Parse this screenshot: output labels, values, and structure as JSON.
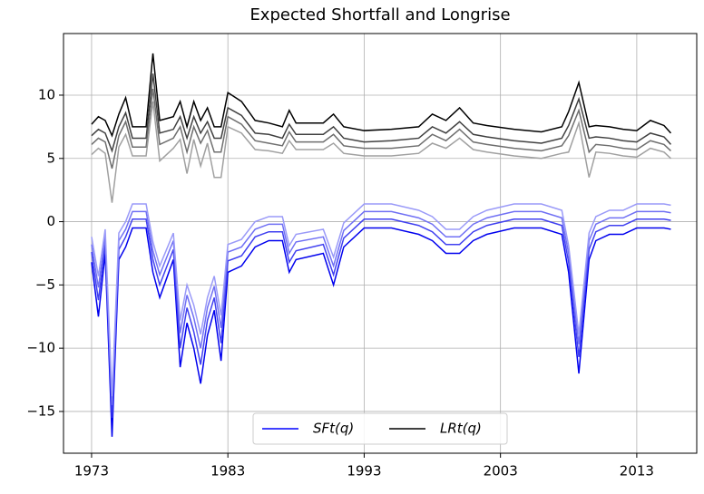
{
  "chart_data": {
    "type": "line",
    "title": "Expected Shortfall and Longrise",
    "x": [
      1973,
      1973.5,
      1974,
      1974.5,
      1975,
      1975.5,
      1976,
      1977,
      1977.5,
      1978,
      1979,
      1979.5,
      1980,
      1980.5,
      1981,
      1981.5,
      1982,
      1982.5,
      1983,
      1984,
      1985,
      1986,
      1987,
      1987.5,
      1988,
      1990,
      1990.75,
      1991.5,
      1993,
      1995,
      1997,
      1998,
      1999,
      2000,
      2001,
      2002,
      2004,
      2006,
      2007.5,
      2008,
      2008.75,
      2009.5,
      2010,
      2011,
      2012,
      2013,
      2014,
      2015,
      2015.5
    ],
    "series": [
      {
        "name": "SFt(q)",
        "color": "#0000ff",
        "lines": [
          {
            "color": "#0000ee",
            "values": [
              -3.2,
              -7.5,
              -2.5,
              -17,
              -3,
              -2,
              -0.5,
              -0.5,
              -4,
              -6,
              -3,
              -11.5,
              -8,
              -10,
              -12.8,
              -9,
              -7,
              -11,
              -4,
              -3.5,
              -2,
              -1.5,
              -1.5,
              -4,
              -3,
              -2.5,
              -5,
              -2,
              -0.5,
              -0.5,
              -1,
              -1.5,
              -2.5,
              -2.5,
              -1.5,
              -1,
              -0.5,
              -0.5,
              -1,
              -4,
              -12,
              -3,
              -1.5,
              -1,
              -1,
              -0.5,
              -0.5,
              -0.5,
              -0.6
            ]
          },
          {
            "color": "#4040f0",
            "values": [
              -2.4,
              -6.2,
              -1.8,
              -15.5,
              -2.2,
              -1.2,
              0.2,
              0.2,
              -3,
              -5,
              -2.2,
              -10,
              -6.8,
              -8.7,
              -11.3,
              -7.8,
              -6,
              -9.6,
              -3.1,
              -2.7,
              -1.2,
              -0.8,
              -0.8,
              -3.2,
              -2.3,
              -1.8,
              -4.2,
              -1.3,
              0.2,
              0.2,
              -0.3,
              -0.8,
              -1.8,
              -1.8,
              -0.8,
              -0.3,
              0.2,
              0.2,
              -0.3,
              -3.2,
              -10.7,
              -2.2,
              -0.8,
              -0.3,
              -0.3,
              0.2,
              0.2,
              0.2,
              0.1
            ]
          },
          {
            "color": "#7070f4",
            "values": [
              -1.8,
              -5.2,
              -1.2,
              -14.5,
              -1.5,
              -0.6,
              0.8,
              0.8,
              -2.3,
              -4.2,
              -1.5,
              -8.8,
              -5.8,
              -7.6,
              -10,
              -6.8,
              -5.1,
              -8.4,
              -2.4,
              -2,
              -0.6,
              -0.2,
              -0.2,
              -2.5,
              -1.6,
              -1.2,
              -3.5,
              -0.7,
              0.8,
              0.8,
              0.3,
              -0.2,
              -1.2,
              -1.2,
              -0.2,
              0.3,
              0.8,
              0.8,
              0.3,
              -2.5,
              -9.7,
              -1.5,
              -0.2,
              0.3,
              0.3,
              0.8,
              0.8,
              0.8,
              0.7
            ]
          },
          {
            "color": "#9a9af8",
            "values": [
              -1.2,
              -4.3,
              -0.6,
              -13.8,
              -0.9,
              0,
              1.4,
              1.4,
              -1.6,
              -3.5,
              -0.9,
              -7.8,
              -5,
              -6.6,
              -8.9,
              -6,
              -4.3,
              -7.4,
              -1.8,
              -1.4,
              0,
              0.4,
              0.4,
              -1.9,
              -1,
              -0.6,
              -2.8,
              -0.1,
              1.4,
              1.4,
              0.9,
              0.4,
              -0.6,
              -0.6,
              0.4,
              0.9,
              1.4,
              1.4,
              0.9,
              -1.9,
              -8.9,
              -0.9,
              0.4,
              0.9,
              0.9,
              1.4,
              1.4,
              1.4,
              1.3
            ]
          }
        ]
      },
      {
        "name": "LRt(q)",
        "color": "#000000",
        "lines": [
          {
            "color": "#000000",
            "values": [
              7.7,
              8.3,
              8,
              6.8,
              8.5,
              9.8,
              7.5,
              7.5,
              13.3,
              8,
              8.3,
              9.5,
              7.5,
              9.5,
              8,
              9,
              7.5,
              7.5,
              10.2,
              9.5,
              8,
              7.8,
              7.5,
              8.8,
              7.8,
              7.8,
              8.5,
              7.5,
              7.2,
              7.3,
              7.5,
              8.5,
              8,
              9,
              7.8,
              7.6,
              7.3,
              7.1,
              7.5,
              8.7,
              11,
              7.5,
              7.6,
              7.5,
              7.3,
              7.2,
              8,
              7.6,
              7
            ]
          },
          {
            "color": "#404040",
            "values": [
              6.8,
              7.3,
              7,
              5.6,
              7.5,
              8.6,
              6.6,
              6.6,
              11.7,
              7,
              7.3,
              8.3,
              6.6,
              8.3,
              7,
              7.9,
              6.6,
              6.6,
              9,
              8.4,
              7,
              6.9,
              6.6,
              7.7,
              6.9,
              6.9,
              7.5,
              6.6,
              6.3,
              6.4,
              6.6,
              7.5,
              7,
              7.9,
              6.9,
              6.7,
              6.4,
              6.2,
              6.6,
              7.6,
              9.7,
              6.6,
              6.7,
              6.6,
              6.4,
              6.3,
              7,
              6.7,
              6.1
            ]
          },
          {
            "color": "#6e6e6e",
            "values": [
              6.1,
              6.6,
              6.3,
              4.2,
              6.8,
              7.9,
              5.9,
              5.9,
              10.5,
              6.1,
              6.6,
              7.5,
              5.5,
              7.5,
              6.2,
              7.2,
              5.5,
              5.5,
              8.3,
              7.7,
              6.4,
              6.2,
              6,
              7.1,
              6.3,
              6.3,
              6.9,
              6,
              5.8,
              5.8,
              6,
              6.9,
              6.4,
              7.3,
              6.3,
              6.1,
              5.8,
              5.6,
              6,
              6.8,
              8.8,
              5.5,
              6.1,
              6,
              5.8,
              5.7,
              6.4,
              6.1,
              5.6
            ]
          },
          {
            "color": "#a0a0a0",
            "values": [
              5.3,
              5.8,
              5.4,
              1.5,
              5.9,
              6.9,
              5.2,
              5.2,
              9.5,
              4.8,
              5.8,
              6.5,
              3.8,
              6.5,
              4.4,
              6.2,
              3.5,
              3.5,
              7.5,
              7,
              5.7,
              5.6,
              5.4,
              6.4,
              5.7,
              5.7,
              6.2,
              5.4,
              5.2,
              5.2,
              5.4,
              6.2,
              5.8,
              6.6,
              5.7,
              5.5,
              5.2,
              5,
              5.4,
              5.5,
              7.8,
              3.5,
              5.5,
              5.4,
              5.2,
              5.1,
              5.8,
              5.5,
              5
            ]
          }
        ]
      }
    ],
    "xlim": [
      1970.94,
      2017.4
    ],
    "ylim": [
      -18.3,
      14.87
    ],
    "xticks": [
      1973,
      1983,
      1993,
      2003,
      2013
    ],
    "yticks": [
      {
        "value": -15,
        "label": "−15"
      },
      {
        "value": -10,
        "label": "−10"
      },
      {
        "value": -5,
        "label": "−5"
      },
      0,
      5,
      10
    ],
    "grid": true,
    "legend": "lower center"
  }
}
